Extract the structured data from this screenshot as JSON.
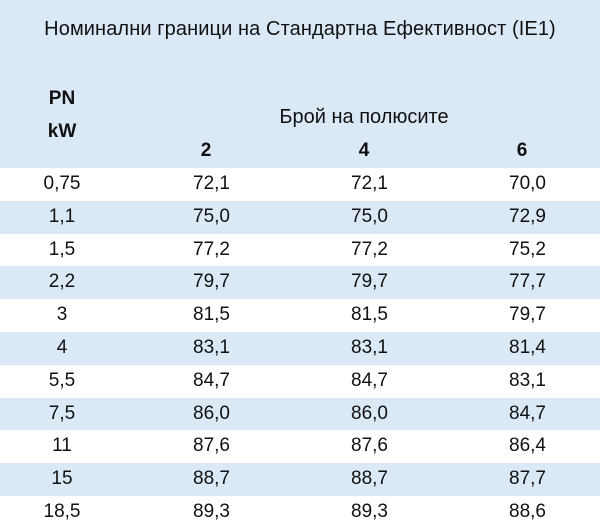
{
  "title": "Номинални граници на Стандартна Ефективност (IE1)",
  "header": {
    "pn_label": "PN",
    "unit_label": "kW",
    "poles_label": "Брой на полюсите",
    "pole_columns": [
      "2",
      "4",
      "6"
    ]
  },
  "colors": {
    "header_bg": "#dbe9f6",
    "stripe_bg": "#dbe9f6",
    "plain_bg": "#ffffff",
    "text": "#111111"
  },
  "rows": [
    {
      "pn": "0,75",
      "v2": "72,1",
      "v4": "72,1",
      "v6": "70,0"
    },
    {
      "pn": "1,1",
      "v2": "75,0",
      "v4": "75,0",
      "v6": "72,9"
    },
    {
      "pn": "1,5",
      "v2": "77,2",
      "v4": "77,2",
      "v6": "75,2"
    },
    {
      "pn": "2,2",
      "v2": "79,7",
      "v4": "79,7",
      "v6": "77,7"
    },
    {
      "pn": "3",
      "v2": "81,5",
      "v4": "81,5",
      "v6": "79,7"
    },
    {
      "pn": "4",
      "v2": "83,1",
      "v4": "83,1",
      "v6": "81,4"
    },
    {
      "pn": "5,5",
      "v2": "84,7",
      "v4": "84,7",
      "v6": "83,1"
    },
    {
      "pn": "7,5",
      "v2": "86,0",
      "v4": "86,0",
      "v6": "84,7"
    },
    {
      "pn": "11",
      "v2": "87,6",
      "v4": "87,6",
      "v6": "86,4"
    },
    {
      "pn": "15",
      "v2": "88,7",
      "v4": "88,7",
      "v6": "87,7"
    },
    {
      "pn": "18,5",
      "v2": "89,3",
      "v4": "89,3",
      "v6": "88,6"
    }
  ]
}
